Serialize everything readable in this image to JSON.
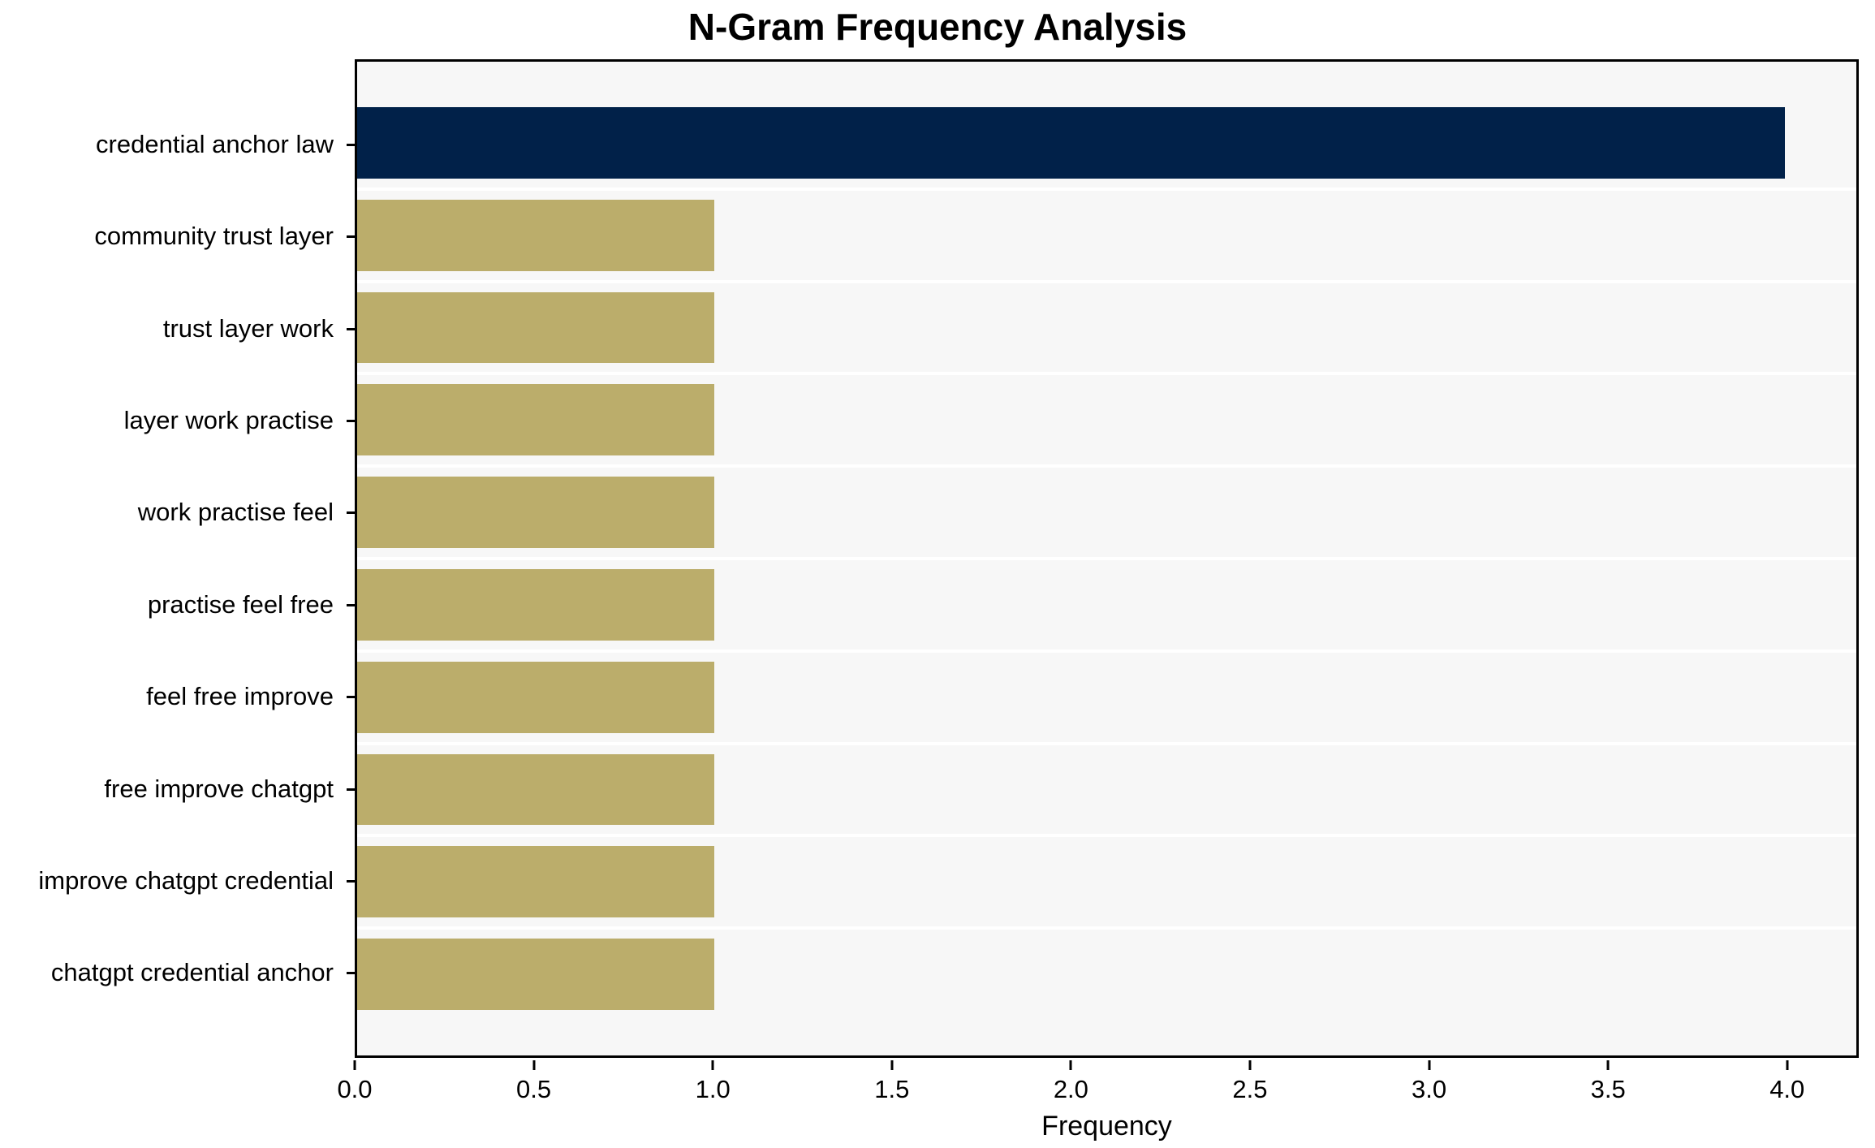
{
  "chart_data": {
    "type": "bar",
    "orientation": "horizontal",
    "title": "N-Gram Frequency Analysis",
    "xlabel": "Frequency",
    "ylabel": "",
    "categories": [
      "credential anchor law",
      "community trust layer",
      "trust layer work",
      "layer work practise",
      "work practise feel",
      "practise feel free",
      "feel free improve",
      "free improve chatgpt",
      "improve chatgpt credential",
      "chatgpt credential anchor"
    ],
    "values": [
      4,
      1,
      1,
      1,
      1,
      1,
      1,
      1,
      1,
      1
    ],
    "bar_colors": [
      "#012149",
      "#BBAD6B",
      "#BBAD6B",
      "#BBAD6B",
      "#BBAD6B",
      "#BBAD6B",
      "#BBAD6B",
      "#BBAD6B",
      "#BBAD6B",
      "#BBAD6B"
    ],
    "xlim": [
      0,
      4.2
    ],
    "xticks": [
      0.0,
      0.5,
      1.0,
      1.5,
      2.0,
      2.5,
      3.0,
      3.5,
      4.0
    ],
    "xtick_labels": [
      "0.0",
      "0.5",
      "1.0",
      "1.5",
      "2.0",
      "2.5",
      "3.0",
      "3.5",
      "4.0"
    ],
    "grid": false,
    "legend": null,
    "colors": {
      "highlight_bar": "#012149",
      "bar": "#BBAD6B",
      "plot_background": "#F7F7F7",
      "figure_background": "#FFFFFF",
      "spine": "#000000",
      "text": "#000000"
    }
  }
}
